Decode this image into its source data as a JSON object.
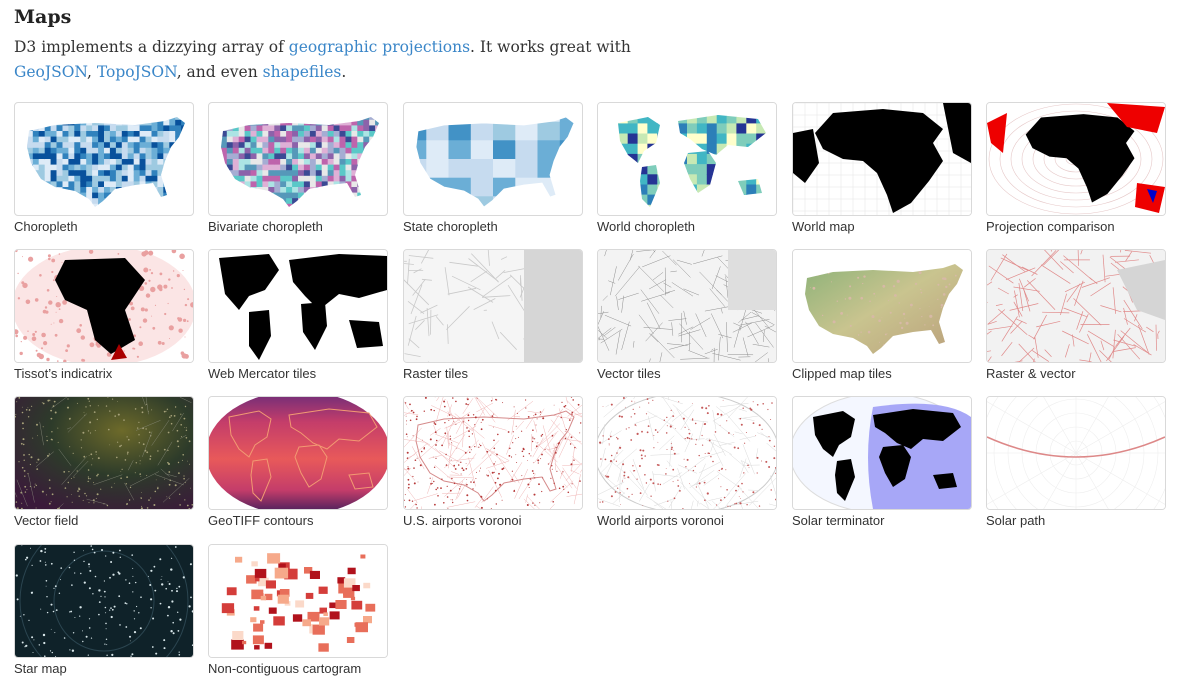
{
  "section": {
    "title": "Maps",
    "intro_prefix": "D3 implements a dizzying array of ",
    "link_projections": "geographic projections",
    "intro_mid": ". It works great with",
    "link_geojson": "GeoJSON",
    "comma": ", ",
    "link_topojson": "TopoJSON",
    "and_even": ", and even ",
    "link_shapefiles": "shapefiles",
    "period": "."
  },
  "gallery": [
    {
      "label": "Choropleth",
      "thumb": "choropleth"
    },
    {
      "label": "Bivariate choropleth",
      "thumb": "bivariate"
    },
    {
      "label": "State choropleth",
      "thumb": "state-choropleth"
    },
    {
      "label": "World choropleth",
      "thumb": "world-choropleth"
    },
    {
      "label": "World map",
      "thumb": "world-map"
    },
    {
      "label": "Projection comparison",
      "thumb": "projection-comparison"
    },
    {
      "label": "Tissot’s indicatrix",
      "thumb": "tissot"
    },
    {
      "label": "Web Mercator tiles",
      "thumb": "web-mercator"
    },
    {
      "label": "Raster tiles",
      "thumb": "raster-tiles"
    },
    {
      "label": "Vector tiles",
      "thumb": "vector-tiles"
    },
    {
      "label": "Clipped map tiles",
      "thumb": "clipped-tiles"
    },
    {
      "label": "Raster & vector",
      "thumb": "raster-vector"
    },
    {
      "label": "Vector field",
      "thumb": "vector-field"
    },
    {
      "label": "GeoTIFF contours",
      "thumb": "geotiff"
    },
    {
      "label": "U.S. airports voronoi",
      "thumb": "us-voronoi"
    },
    {
      "label": "World airports voronoi",
      "thumb": "world-voronoi"
    },
    {
      "label": "Solar terminator",
      "thumb": "solar-terminator"
    },
    {
      "label": "Solar path",
      "thumb": "solar-path"
    },
    {
      "label": "Star map",
      "thumb": "star-map"
    },
    {
      "label": "Non-contiguous cartogram",
      "thumb": "cartogram"
    }
  ]
}
